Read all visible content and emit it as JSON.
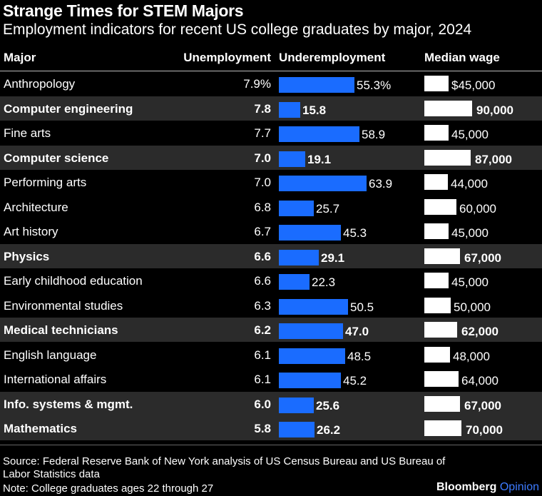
{
  "chart_data": {
    "type": "table",
    "title": "Strange Times for STEM Majors",
    "subtitle": "Employment indicators for recent US college graduates by major, 2024",
    "columns": [
      "Major",
      "Unemployment",
      "Underemployment",
      "Median wage"
    ],
    "rows": [
      {
        "major": "Anthropology",
        "unemployment": 7.9,
        "unemployment_label": "7.9%",
        "underemployment": 55.3,
        "underemployment_label": "55.3%",
        "wage": 45000,
        "wage_label": "$45,000",
        "stem": false
      },
      {
        "major": "Computer engineering",
        "unemployment": 7.8,
        "unemployment_label": "7.8",
        "underemployment": 15.8,
        "underemployment_label": "15.8",
        "wage": 90000,
        "wage_label": "90,000",
        "stem": true
      },
      {
        "major": "Fine arts",
        "unemployment": 7.7,
        "unemployment_label": "7.7",
        "underemployment": 58.9,
        "underemployment_label": "58.9",
        "wage": 45000,
        "wage_label": "45,000",
        "stem": false
      },
      {
        "major": "Computer science",
        "unemployment": 7.0,
        "unemployment_label": "7.0",
        "underemployment": 19.1,
        "underemployment_label": "19.1",
        "wage": 87000,
        "wage_label": "87,000",
        "stem": true
      },
      {
        "major": "Performing arts",
        "unemployment": 7.0,
        "unemployment_label": "7.0",
        "underemployment": 63.9,
        "underemployment_label": "63.9",
        "wage": 44000,
        "wage_label": "44,000",
        "stem": false
      },
      {
        "major": "Architecture",
        "unemployment": 6.8,
        "unemployment_label": "6.8",
        "underemployment": 25.7,
        "underemployment_label": "25.7",
        "wage": 60000,
        "wage_label": "60,000",
        "stem": false
      },
      {
        "major": "Art history",
        "unemployment": 6.7,
        "unemployment_label": "6.7",
        "underemployment": 45.3,
        "underemployment_label": "45.3",
        "wage": 45000,
        "wage_label": "45,000",
        "stem": false
      },
      {
        "major": "Physics",
        "unemployment": 6.6,
        "unemployment_label": "6.6",
        "underemployment": 29.1,
        "underemployment_label": "29.1",
        "wage": 67000,
        "wage_label": "67,000",
        "stem": true
      },
      {
        "major": "Early childhood education",
        "unemployment": 6.6,
        "unemployment_label": "6.6",
        "underemployment": 22.3,
        "underemployment_label": "22.3",
        "wage": 45000,
        "wage_label": "45,000",
        "stem": false
      },
      {
        "major": "Environmental studies",
        "unemployment": 6.3,
        "unemployment_label": "6.3",
        "underemployment": 50.5,
        "underemployment_label": "50.5",
        "wage": 50000,
        "wage_label": "50,000",
        "stem": false
      },
      {
        "major": "Medical technicians",
        "unemployment": 6.2,
        "unemployment_label": "6.2",
        "underemployment": 47.0,
        "underemployment_label": "47.0",
        "wage": 62000,
        "wage_label": "62,000",
        "stem": true
      },
      {
        "major": "English language",
        "unemployment": 6.1,
        "unemployment_label": "6.1",
        "underemployment": 48.5,
        "underemployment_label": "48.5",
        "wage": 48000,
        "wage_label": "48,000",
        "stem": false
      },
      {
        "major": "International affairs",
        "unemployment": 6.1,
        "unemployment_label": "6.1",
        "underemployment": 45.2,
        "underemployment_label": "45.2",
        "wage": 64000,
        "wage_label": "64,000",
        "stem": false
      },
      {
        "major": "Info. systems & mgmt.",
        "unemployment": 6.0,
        "unemployment_label": "6.0",
        "underemployment": 25.6,
        "underemployment_label": "25.6",
        "wage": 67000,
        "wage_label": "67,000",
        "stem": true
      },
      {
        "major": "Mathematics",
        "unemployment": 5.8,
        "unemployment_label": "5.8",
        "underemployment": 26.2,
        "underemployment_label": "26.2",
        "wage": 70000,
        "wage_label": "70,000",
        "stem": true
      }
    ],
    "colors": {
      "underemployment_bar": "#1a6cff",
      "wage_bar": "#ffffff",
      "highlight_row": "#2b2b2b"
    }
  },
  "footer": {
    "source": "Source: Federal Reserve Bank of New York analysis of US Census Bureau and US Bureau of Labor Statistics data",
    "note": "Note: College graduates ages 22 through 27",
    "brand": "Bloomberg",
    "brand_suffix": "Opinion"
  }
}
